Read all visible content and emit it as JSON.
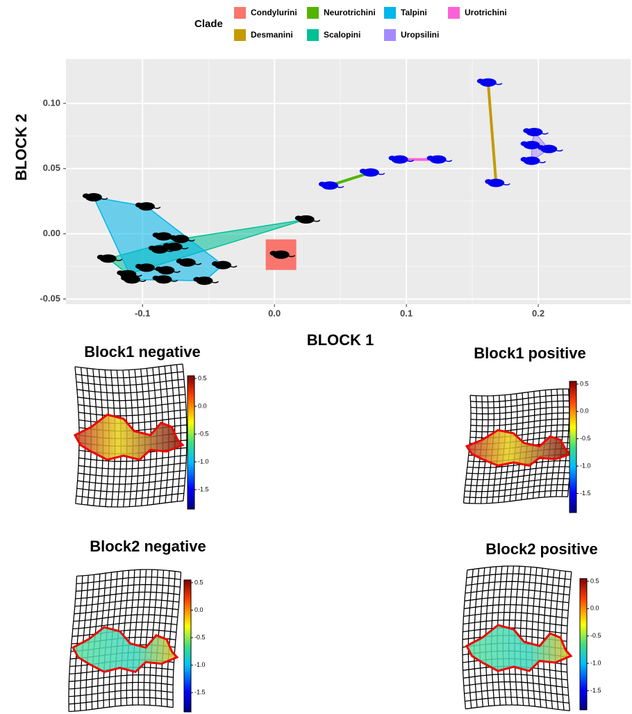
{
  "chart_data": {
    "type": "scatter",
    "xlabel": "BLOCK 1",
    "ylabel": "BLOCK 2",
    "legend_title": "Clade",
    "xlim": [
      -0.158,
      0.27
    ],
    "ylim": [
      -0.054,
      0.134
    ],
    "xticks": [
      -0.1,
      {
        "value": 0,
        "label": "0.0"
      },
      0.1,
      0.2
    ],
    "yticks": [
      {
        "value": 0.1,
        "label": "0.10"
      },
      0.05,
      {
        "value": 0,
        "label": "0.00"
      },
      -0.05
    ],
    "grid": true,
    "series": [
      {
        "name": "Condylurini",
        "color": "#f8766d",
        "marker_color": "#000000",
        "x": [
          0.005
        ],
        "values": [
          -0.016
        ]
      },
      {
        "name": "Desmanini",
        "color": "#c49a00",
        "marker_color": "#0000ee",
        "x": [
          0.162,
          0.168
        ],
        "values": [
          0.116,
          0.039
        ]
      },
      {
        "name": "Neurotrichini",
        "color": "#53b400",
        "marker_color": "#0000ee",
        "x": [
          0.042,
          0.073
        ],
        "values": [
          0.037,
          0.047
        ]
      },
      {
        "name": "Scalopini",
        "color": "#00c094",
        "marker_color": "#000000",
        "x": [
          0.024,
          -0.126,
          -0.111,
          -0.071
        ],
        "values": [
          0.011,
          -0.019,
          -0.031,
          -0.004
        ]
      },
      {
        "name": "Talpini",
        "color": "#00b6eb",
        "marker_color": "#000000",
        "x": [
          -0.137,
          -0.097,
          -0.084,
          -0.076,
          -0.087,
          -0.066,
          -0.039,
          -0.053,
          -0.082,
          -0.097,
          -0.084,
          -0.108
        ],
        "values": [
          0.028,
          0.021,
          -0.002,
          -0.01,
          -0.012,
          -0.022,
          -0.024,
          -0.036,
          -0.028,
          -0.026,
          -0.035,
          -0.035
        ]
      },
      {
        "name": "Uropsilini",
        "color": "#a58aff",
        "marker_color": "#0000ee",
        "x": [
          0.197,
          0.195,
          0.208,
          0.195
        ],
        "values": [
          0.078,
          0.068,
          0.065,
          0.056
        ]
      },
      {
        "name": "Urotrichini",
        "color": "#fb61d7",
        "marker_color": "#0000ee",
        "x": [
          0.095,
          0.124
        ],
        "values": [
          0.057,
          0.057
        ]
      }
    ]
  },
  "panels": [
    {
      "title": "Block1 negative",
      "colorbar": {
        "ylim": [
          -1.85,
          0.55
        ],
        "yticks": [
          0.5,
          {
            "value": 0,
            "label": "0.0"
          },
          -0.5,
          {
            "value": -1,
            "label": "-1.0"
          },
          -1.5
        ]
      }
    },
    {
      "title": "Block1 positive",
      "colorbar": {
        "ylim": [
          -1.85,
          0.55
        ],
        "yticks": [
          0.5,
          {
            "value": 0,
            "label": "0.0"
          },
          -0.5,
          {
            "value": -1,
            "label": "-1.0"
          },
          -1.5
        ]
      }
    },
    {
      "title": "Block2 negative",
      "colorbar": {
        "ylim": [
          -1.85,
          0.55
        ],
        "yticks": [
          0.5,
          {
            "value": 0,
            "label": "0.0"
          },
          -0.5,
          {
            "value": -1,
            "label": "-1.0"
          },
          -1.5
        ]
      }
    },
    {
      "title": "Block2 positive",
      "colorbar": {
        "ylim": [
          -1.85,
          0.55
        ],
        "yticks": [
          0.5,
          {
            "value": 0,
            "label": "0.0"
          },
          -0.5,
          {
            "value": -1,
            "label": "-1.0"
          },
          -1.5
        ]
      }
    }
  ]
}
